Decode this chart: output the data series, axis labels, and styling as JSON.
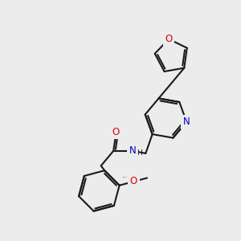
{
  "bg": "#ececec",
  "bc": "#1a1a1a",
  "lw": 1.5,
  "fs": 8.5,
  "colors": {
    "O": "#dd0000",
    "N": "#0000cc",
    "C": "#1a1a1a"
  },
  "xlim": [
    0,
    10
  ],
  "ylim": [
    0,
    10
  ],
  "figsize": [
    3.0,
    3.0
  ],
  "dpi": 100
}
